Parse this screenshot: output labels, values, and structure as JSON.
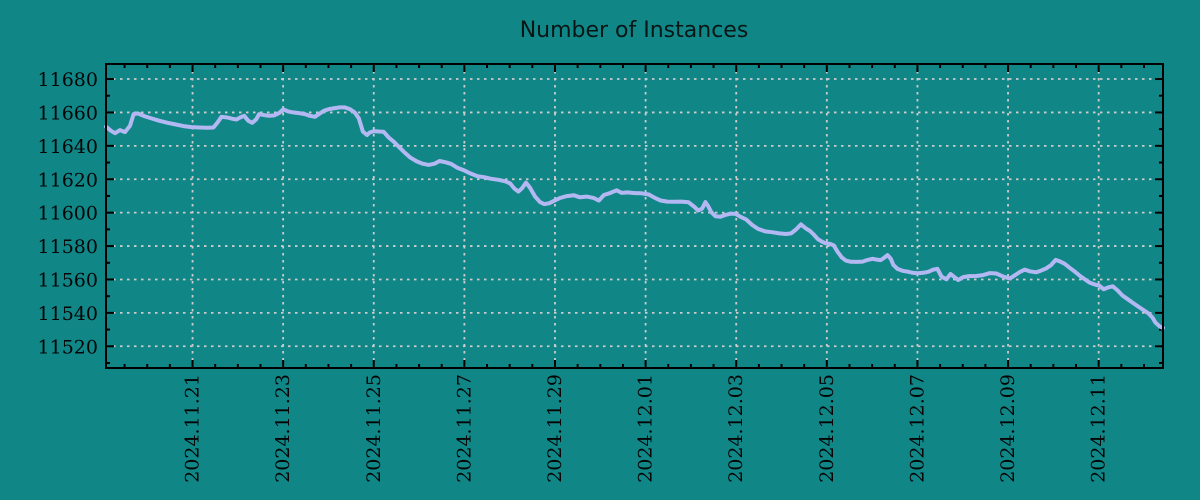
{
  "page": {
    "background_color": "#108687"
  },
  "chart_data": {
    "type": "line",
    "title": "Number of Instances",
    "legend": "none",
    "grid": {
      "style": "dashed",
      "color": "#cccccc",
      "at": "major ticks both axes"
    },
    "colors": {
      "background": "#108687",
      "line": "#b4b8f2",
      "axis": "#000000",
      "grid": "#cccccc",
      "text": "#050505"
    },
    "x_axis": {
      "unit": "date",
      "tick_labels": [
        "2024.11.21",
        "2024.11.23",
        "2024.11.25",
        "2024.11.27",
        "2024.11.29",
        "2024.12.01",
        "2024.12.03",
        "2024.12.05",
        "2024.12.07",
        "2024.12.09",
        "2024.12.11"
      ],
      "tick_positions_days": [
        2,
        4,
        6,
        8,
        10,
        12,
        14,
        16,
        18,
        20,
        22
      ],
      "minor_tick_interval_days": 0.5,
      "range_days": [
        0.09,
        23.42
      ],
      "label_rotation_deg": -90,
      "epoch_note": "day 0 corresponds to first visible data day before 2024.11.21 axis start"
    },
    "y_axis": {
      "tick_labels": [
        "11520",
        "11540",
        "11560",
        "11580",
        "11600",
        "11620",
        "11640",
        "11660",
        "11680"
      ],
      "ticks": [
        11520,
        11540,
        11560,
        11580,
        11600,
        11620,
        11640,
        11660,
        11680
      ],
      "minor_tick_interval": 10,
      "range": [
        11507,
        11689
      ]
    },
    "series": [
      {
        "name": "Number of Instances",
        "points": [
          [
            0.09,
            11651.5
          ],
          [
            0.2,
            11649.0
          ],
          [
            0.29,
            11647.6
          ],
          [
            0.4,
            11649.4
          ],
          [
            0.51,
            11648.2
          ],
          [
            0.62,
            11652.0
          ],
          [
            0.7,
            11659.0
          ],
          [
            0.79,
            11659.4
          ],
          [
            0.95,
            11657.6
          ],
          [
            1.1,
            11656.4
          ],
          [
            1.27,
            11655.0
          ],
          [
            1.45,
            11653.8
          ],
          [
            1.63,
            11652.8
          ],
          [
            1.8,
            11651.8
          ],
          [
            1.98,
            11651.2
          ],
          [
            2.15,
            11651.0
          ],
          [
            2.33,
            11650.8
          ],
          [
            2.46,
            11651.0
          ],
          [
            2.55,
            11654.0
          ],
          [
            2.64,
            11657.4
          ],
          [
            2.77,
            11657.0
          ],
          [
            2.88,
            11656.2
          ],
          [
            2.97,
            11655.8
          ],
          [
            3.05,
            11657.0
          ],
          [
            3.14,
            11658.0
          ],
          [
            3.23,
            11655.0
          ],
          [
            3.32,
            11653.8
          ],
          [
            3.41,
            11656.0
          ],
          [
            3.47,
            11659.0
          ],
          [
            3.58,
            11658.4
          ],
          [
            3.69,
            11658.0
          ],
          [
            3.8,
            11658.2
          ],
          [
            3.91,
            11659.6
          ],
          [
            4.0,
            11661.8
          ],
          [
            4.11,
            11660.6
          ],
          [
            4.22,
            11660.0
          ],
          [
            4.35,
            11659.6
          ],
          [
            4.48,
            11659.0
          ],
          [
            4.59,
            11658.0
          ],
          [
            4.7,
            11657.4
          ],
          [
            4.79,
            11659.0
          ],
          [
            4.9,
            11661.0
          ],
          [
            5.01,
            11662.0
          ],
          [
            5.14,
            11662.6
          ],
          [
            5.25,
            11663.0
          ],
          [
            5.36,
            11663.0
          ],
          [
            5.47,
            11662.0
          ],
          [
            5.58,
            11660.0
          ],
          [
            5.67,
            11656.5
          ],
          [
            5.76,
            11648.5
          ],
          [
            5.85,
            11646.5
          ],
          [
            5.91,
            11648.0
          ],
          [
            6.0,
            11648.8
          ],
          [
            6.11,
            11648.6
          ],
          [
            6.22,
            11648.4
          ],
          [
            6.33,
            11645.0
          ],
          [
            6.44,
            11642.5
          ],
          [
            6.55,
            11639.5
          ],
          [
            6.68,
            11636.0
          ],
          [
            6.81,
            11632.9
          ],
          [
            6.95,
            11630.7
          ],
          [
            7.08,
            11629.3
          ],
          [
            7.21,
            11628.6
          ],
          [
            7.34,
            11629.3
          ],
          [
            7.45,
            11630.9
          ],
          [
            7.58,
            11630.2
          ],
          [
            7.71,
            11629.2
          ],
          [
            7.85,
            11626.8
          ],
          [
            7.98,
            11625.5
          ],
          [
            8.13,
            11623.5
          ],
          [
            8.29,
            11621.8
          ],
          [
            8.44,
            11621.2
          ],
          [
            8.59,
            11620.3
          ],
          [
            8.75,
            11619.7
          ],
          [
            8.9,
            11618.8
          ],
          [
            9.01,
            11617.5
          ],
          [
            9.1,
            11614.5
          ],
          [
            9.19,
            11612.6
          ],
          [
            9.27,
            11614.5
          ],
          [
            9.36,
            11618.0
          ],
          [
            9.45,
            11614.8
          ],
          [
            9.56,
            11609.6
          ],
          [
            9.67,
            11606.3
          ],
          [
            9.76,
            11605.1
          ],
          [
            9.87,
            11605.6
          ],
          [
            9.98,
            11607.1
          ],
          [
            10.11,
            11608.8
          ],
          [
            10.26,
            11609.9
          ],
          [
            10.42,
            11610.4
          ],
          [
            10.55,
            11609.2
          ],
          [
            10.7,
            11609.6
          ],
          [
            10.86,
            11608.7
          ],
          [
            10.97,
            11607.2
          ],
          [
            11.08,
            11610.6
          ],
          [
            11.21,
            11611.7
          ],
          [
            11.36,
            11613.4
          ],
          [
            11.47,
            11611.8
          ],
          [
            11.6,
            11612.1
          ],
          [
            11.76,
            11611.7
          ],
          [
            11.91,
            11611.6
          ],
          [
            12.07,
            11610.9
          ],
          [
            12.2,
            11608.9
          ],
          [
            12.33,
            11607.3
          ],
          [
            12.48,
            11606.6
          ],
          [
            12.64,
            11606.5
          ],
          [
            12.79,
            11606.6
          ],
          [
            12.95,
            11606.2
          ],
          [
            13.08,
            11603.4
          ],
          [
            13.16,
            11601.3
          ],
          [
            13.25,
            11602.5
          ],
          [
            13.32,
            11606.3
          ],
          [
            13.38,
            11604.0
          ],
          [
            13.45,
            11600.3
          ],
          [
            13.54,
            11597.9
          ],
          [
            13.65,
            11597.6
          ],
          [
            13.76,
            11598.6
          ],
          [
            13.87,
            11599.4
          ],
          [
            13.98,
            11599.3
          ],
          [
            14.09,
            11597.6
          ],
          [
            14.22,
            11595.9
          ],
          [
            14.35,
            11592.7
          ],
          [
            14.48,
            11590.3
          ],
          [
            14.64,
            11588.8
          ],
          [
            14.79,
            11588.3
          ],
          [
            14.95,
            11587.6
          ],
          [
            15.1,
            11587.2
          ],
          [
            15.21,
            11587.6
          ],
          [
            15.32,
            11589.9
          ],
          [
            15.43,
            11593.0
          ],
          [
            15.54,
            11590.5
          ],
          [
            15.63,
            11589.0
          ],
          [
            15.71,
            11586.9
          ],
          [
            15.8,
            11584.2
          ],
          [
            15.89,
            11582.7
          ],
          [
            15.98,
            11581.6
          ],
          [
            16.07,
            11581.3
          ],
          [
            16.15,
            11580.5
          ],
          [
            16.24,
            11576.5
          ],
          [
            16.33,
            11573.2
          ],
          [
            16.42,
            11571.3
          ],
          [
            16.53,
            11570.6
          ],
          [
            16.66,
            11570.5
          ],
          [
            16.79,
            11570.7
          ],
          [
            16.9,
            11571.7
          ],
          [
            17.01,
            11572.4
          ],
          [
            17.1,
            11571.9
          ],
          [
            17.19,
            11571.6
          ],
          [
            17.27,
            11573.1
          ],
          [
            17.34,
            11574.6
          ],
          [
            17.41,
            11572.5
          ],
          [
            17.47,
            11568.7
          ],
          [
            17.56,
            11566.3
          ],
          [
            17.67,
            11565.2
          ],
          [
            17.78,
            11564.7
          ],
          [
            17.89,
            11564.0
          ],
          [
            18.0,
            11563.7
          ],
          [
            18.13,
            11564.0
          ],
          [
            18.24,
            11564.6
          ],
          [
            18.35,
            11565.9
          ],
          [
            18.44,
            11566.4
          ],
          [
            18.53,
            11561.7
          ],
          [
            18.64,
            11560.1
          ],
          [
            18.73,
            11563.3
          ],
          [
            18.81,
            11561.6
          ],
          [
            18.9,
            11559.7
          ],
          [
            19.01,
            11561.4
          ],
          [
            19.14,
            11562.0
          ],
          [
            19.3,
            11562.1
          ],
          [
            19.45,
            11562.6
          ],
          [
            19.6,
            11563.8
          ],
          [
            19.74,
            11563.6
          ],
          [
            19.89,
            11561.7
          ],
          [
            20.04,
            11560.6
          ],
          [
            20.15,
            11562.5
          ],
          [
            20.26,
            11564.5
          ],
          [
            20.37,
            11565.9
          ],
          [
            20.48,
            11564.9
          ],
          [
            20.62,
            11564.3
          ],
          [
            20.73,
            11565.3
          ],
          [
            20.84,
            11566.6
          ],
          [
            20.95,
            11568.6
          ],
          [
            21.05,
            11571.7
          ],
          [
            21.14,
            11570.9
          ],
          [
            21.25,
            11569.4
          ],
          [
            21.36,
            11567.0
          ],
          [
            21.47,
            11564.8
          ],
          [
            21.58,
            11562.3
          ],
          [
            21.69,
            11560.2
          ],
          [
            21.8,
            11558.1
          ],
          [
            21.93,
            11556.9
          ],
          [
            22.02,
            11556.2
          ],
          [
            22.11,
            11554.2
          ],
          [
            22.22,
            11555.3
          ],
          [
            22.31,
            11555.9
          ],
          [
            22.42,
            11553.4
          ],
          [
            22.53,
            11550.3
          ],
          [
            22.64,
            11548.2
          ],
          [
            22.77,
            11545.7
          ],
          [
            22.9,
            11543.3
          ],
          [
            23.01,
            11541.3
          ],
          [
            23.1,
            11539.7
          ],
          [
            23.19,
            11537.1
          ],
          [
            23.25,
            11534.3
          ],
          [
            23.35,
            11531.8
          ],
          [
            23.42,
            11531.0
          ]
        ]
      }
    ]
  }
}
